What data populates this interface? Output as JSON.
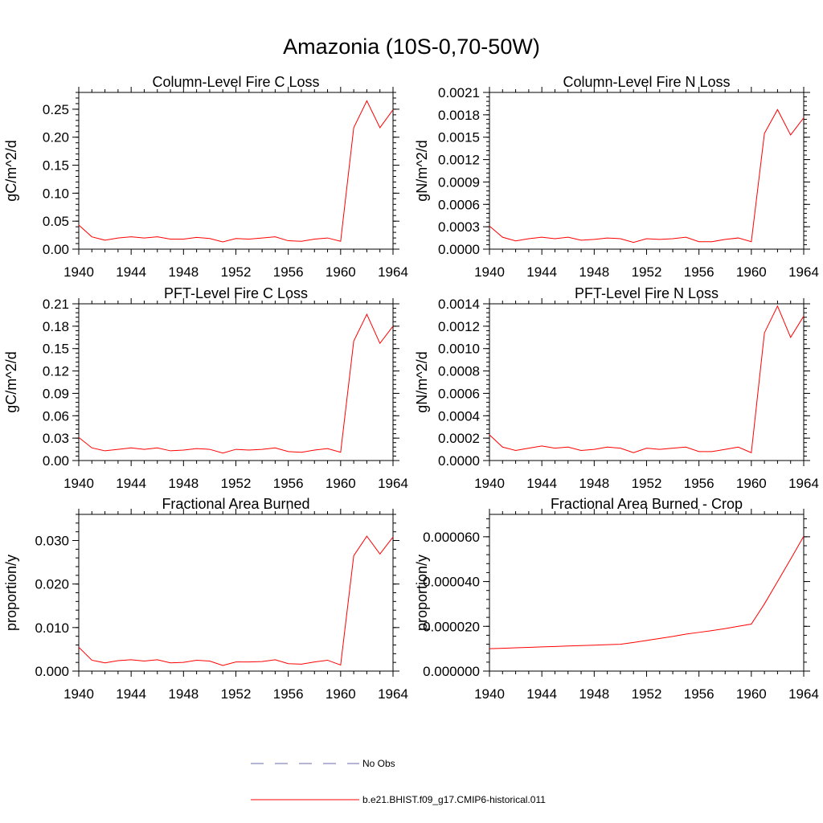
{
  "title": "Amazonia (10S-0,70-50W)",
  "colors": {
    "model": "#ff0000",
    "obs": "#6a6aa8",
    "axis": "#000000"
  },
  "legend": [
    {
      "label": "No Obs",
      "style": "dashed",
      "color": "#6a6aa8"
    },
    {
      "label": "b.e21.BHIST.f09_g17.CMIP6-historical.011",
      "style": "solid",
      "color": "#ff0000"
    }
  ],
  "chart_data": [
    {
      "type": "line",
      "title": "Column-Level Fire C Loss",
      "ylabel": "gC/m^2/d",
      "xlim": [
        1940,
        1964
      ],
      "ylim": [
        0,
        0.28
      ],
      "xticks": [
        1940,
        1944,
        1948,
        1952,
        1956,
        1960,
        1964
      ],
      "yticks": [
        0.0,
        0.05,
        0.1,
        0.15,
        0.2,
        0.25
      ],
      "ytick_labels": [
        "0.00",
        "0.05",
        "0.10",
        "0.15",
        "0.20",
        "0.25"
      ],
      "x": [
        1940,
        1941,
        1942,
        1943,
        1944,
        1945,
        1946,
        1947,
        1948,
        1949,
        1950,
        1951,
        1952,
        1953,
        1954,
        1955,
        1956,
        1957,
        1958,
        1959,
        1960,
        1961,
        1962,
        1963,
        1964
      ],
      "series": [
        {
          "values": [
            0.043,
            0.022,
            0.016,
            0.02,
            0.022,
            0.02,
            0.022,
            0.018,
            0.018,
            0.021,
            0.019,
            0.013,
            0.019,
            0.018,
            0.02,
            0.022,
            0.015,
            0.014,
            0.018,
            0.02,
            0.014,
            0.217,
            0.265,
            0.217,
            0.249
          ]
        }
      ]
    },
    {
      "type": "line",
      "title": "Column-Level Fire N Loss",
      "ylabel": "gN/m^2/d",
      "xlim": [
        1940,
        1964
      ],
      "ylim": [
        0,
        0.0021
      ],
      "xticks": [
        1940,
        1944,
        1948,
        1952,
        1956,
        1960,
        1964
      ],
      "yticks": [
        0.0,
        0.0003,
        0.0006,
        0.0009,
        0.0012,
        0.0015,
        0.0018,
        0.0021
      ],
      "ytick_labels": [
        "0.0000",
        "0.0003",
        "0.0006",
        "0.0009",
        "0.0012",
        "0.0015",
        "0.0018",
        "0.0021"
      ],
      "x": [
        1940,
        1941,
        1942,
        1943,
        1944,
        1945,
        1946,
        1947,
        1948,
        1949,
        1950,
        1951,
        1952,
        1953,
        1954,
        1955,
        1956,
        1957,
        1958,
        1959,
        1960,
        1961,
        1962,
        1963,
        1964
      ],
      "series": [
        {
          "values": [
            0.00031,
            0.00016,
            0.00011,
            0.00014,
            0.00016,
            0.00014,
            0.00016,
            0.00012,
            0.00013,
            0.00015,
            0.00014,
            9e-05,
            0.00014,
            0.00013,
            0.00014,
            0.00016,
            0.0001,
            0.0001,
            0.00013,
            0.00015,
            0.0001,
            0.00155,
            0.00187,
            0.00153,
            0.00176
          ]
        }
      ]
    },
    {
      "type": "line",
      "title": "PFT-Level Fire C Loss",
      "ylabel": "gC/m^2/d",
      "xlim": [
        1940,
        1964
      ],
      "ylim": [
        0,
        0.21
      ],
      "xticks": [
        1940,
        1944,
        1948,
        1952,
        1956,
        1960,
        1964
      ],
      "yticks": [
        0.0,
        0.03,
        0.06,
        0.09,
        0.12,
        0.15,
        0.18,
        0.21
      ],
      "ytick_labels": [
        "0.00",
        "0.03",
        "0.06",
        "0.09",
        "0.12",
        "0.15",
        "0.18",
        "0.21"
      ],
      "x": [
        1940,
        1941,
        1942,
        1943,
        1944,
        1945,
        1946,
        1947,
        1948,
        1949,
        1950,
        1951,
        1952,
        1953,
        1954,
        1955,
        1956,
        1957,
        1958,
        1959,
        1960,
        1961,
        1962,
        1963,
        1964
      ],
      "series": [
        {
          "values": [
            0.031,
            0.017,
            0.013,
            0.015,
            0.017,
            0.015,
            0.017,
            0.013,
            0.014,
            0.016,
            0.015,
            0.01,
            0.015,
            0.014,
            0.015,
            0.017,
            0.012,
            0.011,
            0.014,
            0.016,
            0.011,
            0.16,
            0.196,
            0.157,
            0.18
          ]
        }
      ]
    },
    {
      "type": "line",
      "title": "PFT-Level Fire N Loss",
      "ylabel": "gN/m^2/d",
      "xlim": [
        1940,
        1964
      ],
      "ylim": [
        0,
        0.0014
      ],
      "xticks": [
        1940,
        1944,
        1948,
        1952,
        1956,
        1960,
        1964
      ],
      "yticks": [
        0.0,
        0.0002,
        0.0004,
        0.0006,
        0.0008,
        0.001,
        0.0012,
        0.0014
      ],
      "ytick_labels": [
        "0.0000",
        "0.0002",
        "0.0004",
        "0.0006",
        "0.0008",
        "0.0010",
        "0.0012",
        "0.0014"
      ],
      "x": [
        1940,
        1941,
        1942,
        1943,
        1944,
        1945,
        1946,
        1947,
        1948,
        1949,
        1950,
        1951,
        1952,
        1953,
        1954,
        1955,
        1956,
        1957,
        1958,
        1959,
        1960,
        1961,
        1962,
        1963,
        1964
      ],
      "series": [
        {
          "values": [
            0.00023,
            0.00012,
            9e-05,
            0.00011,
            0.00013,
            0.00011,
            0.00012,
            9e-05,
            0.0001,
            0.00012,
            0.00011,
            7e-05,
            0.00011,
            0.0001,
            0.00011,
            0.00012,
            8e-05,
            8e-05,
            0.0001,
            0.00012,
            7e-05,
            0.00114,
            0.00138,
            0.0011,
            0.00129
          ]
        }
      ]
    },
    {
      "type": "line",
      "title": "Fractional Area Burned",
      "ylabel": "proportion/y",
      "xlim": [
        1940,
        1964
      ],
      "ylim": [
        0,
        0.036
      ],
      "xticks": [
        1940,
        1944,
        1948,
        1952,
        1956,
        1960,
        1964
      ],
      "yticks": [
        0.0,
        0.01,
        0.02,
        0.03
      ],
      "ytick_labels": [
        "0.000",
        "0.010",
        "0.020",
        "0.030"
      ],
      "x": [
        1940,
        1941,
        1942,
        1943,
        1944,
        1945,
        1946,
        1947,
        1948,
        1949,
        1950,
        1951,
        1952,
        1953,
        1954,
        1955,
        1956,
        1957,
        1958,
        1959,
        1960,
        1961,
        1962,
        1963,
        1964
      ],
      "series": [
        {
          "values": [
            0.0055,
            0.0025,
            0.0019,
            0.0024,
            0.0026,
            0.0023,
            0.0026,
            0.0019,
            0.002,
            0.0025,
            0.0023,
            0.0013,
            0.0021,
            0.0021,
            0.0022,
            0.0026,
            0.0017,
            0.0016,
            0.0021,
            0.0025,
            0.0014,
            0.0265,
            0.031,
            0.0269,
            0.0308
          ]
        }
      ]
    },
    {
      "type": "line",
      "title": "Fractional Area Burned - Crop",
      "ylabel": "proportion/y",
      "xlim": [
        1940,
        1964
      ],
      "ylim": [
        0,
        7e-05
      ],
      "xticks": [
        1940,
        1944,
        1948,
        1952,
        1956,
        1960,
        1964
      ],
      "yticks": [
        0.0,
        2e-05,
        4e-05,
        6e-05
      ],
      "ytick_labels": [
        "0.000000",
        "0.000020",
        "0.000040",
        "0.000060"
      ],
      "x": [
        1940,
        1941,
        1942,
        1943,
        1944,
        1945,
        1946,
        1947,
        1948,
        1949,
        1950,
        1951,
        1952,
        1953,
        1954,
        1955,
        1956,
        1957,
        1958,
        1959,
        1960,
        1961,
        1962,
        1963,
        1964
      ],
      "series": [
        {
          "values": [
            1e-05,
            1.02e-05,
            1.04e-05,
            1.06e-05,
            1.08e-05,
            1.1e-05,
            1.12e-05,
            1.14e-05,
            1.16e-05,
            1.18e-05,
            1.2e-05,
            1.28e-05,
            1.37e-05,
            1.46e-05,
            1.55e-05,
            1.65e-05,
            1.73e-05,
            1.81e-05,
            1.9e-05,
            2e-05,
            2.1e-05,
            3e-05,
            4e-05,
            5e-05,
            6.02e-05
          ]
        }
      ]
    }
  ]
}
